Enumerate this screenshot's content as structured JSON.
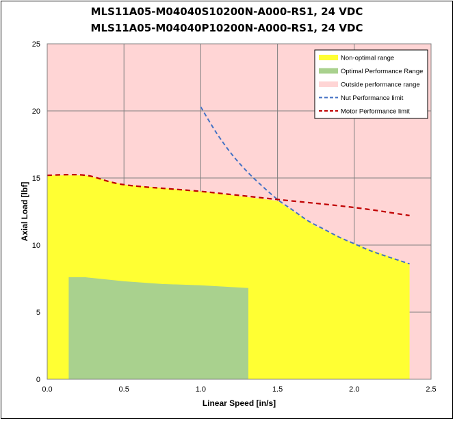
{
  "chart_data": {
    "type": "area",
    "title_lines": [
      "MLS11A05-M04040S10200N-A000-RS1, 24 VDC",
      "MLS11A05-M04040P10200N-A000-RS1, 24 VDC"
    ],
    "xlabel": "Linear Speed [in/s]",
    "ylabel": "Axial Load [lbf]",
    "xlim": [
      0,
      2.5
    ],
    "ylim": [
      0,
      25
    ],
    "x_ticks": [
      "0.0",
      "0.5",
      "1.0",
      "1.5",
      "2.0",
      "2.5"
    ],
    "y_ticks": [
      "0",
      "5",
      "10",
      "15",
      "20",
      "25"
    ],
    "grid": true,
    "legend_position": "top-right",
    "series": [
      {
        "name": "Non-optimal range",
        "kind": "area",
        "color": "#ffff33",
        "x": [
          0,
          0.25,
          0.5,
          1.0,
          1.5,
          1.75,
          2.0,
          2.36
        ],
        "y": [
          15.2,
          15.2,
          14.5,
          14.0,
          13.3,
          11.4,
          10.1,
          8.6
        ]
      },
      {
        "name": "Optimal Performance Range",
        "kind": "area",
        "color": "#a9d18e",
        "x": [
          0.14,
          0.25,
          0.5,
          0.75,
          1.0,
          1.31
        ],
        "y": [
          7.6,
          7.6,
          7.3,
          7.1,
          7.0,
          6.8
        ]
      },
      {
        "name": "Outside performance range",
        "kind": "area",
        "color": "#ffd5d5"
      },
      {
        "name": "Nut Performance limit",
        "kind": "dashed-line",
        "color": "#4472c4",
        "x": [
          1.0,
          1.1,
          1.2,
          1.3,
          1.4,
          1.5,
          1.6,
          1.7,
          1.8,
          1.9,
          2.0,
          2.1,
          2.2,
          2.36
        ],
        "y": [
          20.3,
          18.4,
          16.8,
          15.5,
          14.4,
          13.4,
          12.6,
          11.8,
          11.2,
          10.6,
          10.1,
          9.6,
          9.2,
          8.6
        ]
      },
      {
        "name": "Motor Performance limit",
        "kind": "dashed-line",
        "color": "#c00000",
        "x": [
          0,
          0.25,
          0.5,
          1.0,
          1.5,
          2.0,
          2.36
        ],
        "y": [
          15.2,
          15.2,
          14.5,
          14.0,
          13.4,
          12.8,
          12.2
        ]
      }
    ],
    "colors": {
      "plot_background": "#ffd5d5",
      "gridline": "#7f7f7f"
    }
  }
}
